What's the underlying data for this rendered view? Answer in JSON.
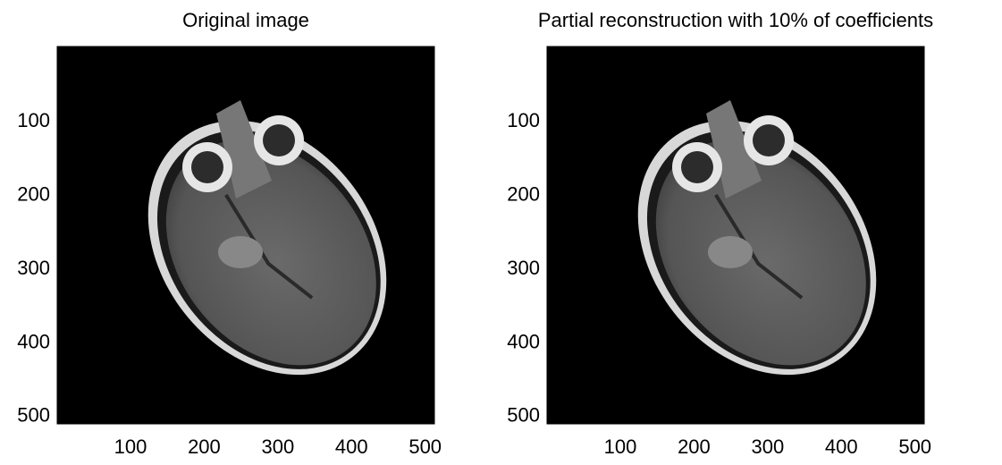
{
  "chart_data": [
    {
      "type": "image",
      "title": "Original image",
      "xlim": [
        0.5,
        512.5
      ],
      "ylim": [
        0.5,
        512.5
      ],
      "y_reversed": true,
      "xticks": [
        100,
        200,
        300,
        400,
        500
      ],
      "yticks": [
        100,
        200,
        300,
        400,
        500
      ]
    },
    {
      "type": "image",
      "title": "Partial reconstruction with 10% of coefficients",
      "xlim": [
        0.5,
        512.5
      ],
      "ylim": [
        0.5,
        512.5
      ],
      "y_reversed": true,
      "xticks": [
        100,
        200,
        300,
        400,
        500
      ],
      "yticks": [
        100,
        200,
        300,
        400,
        500
      ]
    }
  ]
}
